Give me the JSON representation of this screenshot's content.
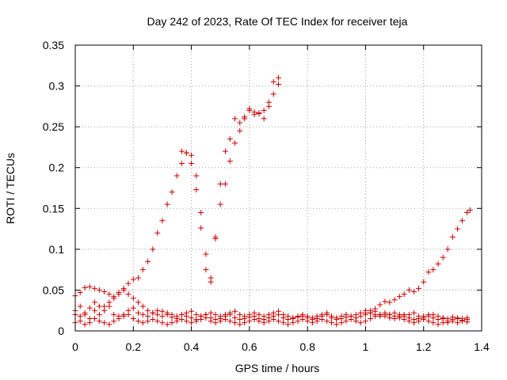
{
  "chart_data": {
    "type": "scatter",
    "title": "Day 242 of 2023, Rate Of TEC Index for receiver teja",
    "xlabel": "GPS time / hours",
    "ylabel": "ROTI / TECUs",
    "xlim": [
      0,
      1.4
    ],
    "ylim": [
      0,
      0.35
    ],
    "x_ticks": [
      0,
      0.2,
      0.4,
      0.6,
      0.8,
      1,
      1.2,
      1.4
    ],
    "x_tick_labels": [
      "0",
      "0.2",
      "0.4",
      "0.6",
      "0.8",
      "1",
      "1.2",
      "1.4"
    ],
    "y_ticks": [
      0,
      0.05,
      0.1,
      0.15,
      0.2,
      0.25,
      0.3,
      0.35
    ],
    "y_tick_labels": [
      "0",
      "0.05",
      "0.1",
      "0.15",
      "0.2",
      "0.25",
      "0.3",
      "0.35"
    ],
    "grid": true,
    "marker": "+",
    "color": "#cc0000",
    "series": [
      {
        "x": [
          0.0,
          0.017,
          0.033,
          0.05,
          0.067,
          0.083,
          0.1,
          0.117,
          0.133,
          0.15,
          0.167,
          0.183,
          0.2,
          0.217,
          0.233,
          0.25,
          0.267,
          0.283,
          0.3,
          0.317,
          0.333,
          0.35,
          0.367,
          0.383,
          0.4,
          0.417,
          0.433,
          0.45,
          0.467,
          0.483,
          0.5,
          0.517,
          0.533,
          0.55,
          0.567,
          0.583,
          0.6,
          0.617,
          0.633,
          0.65,
          0.667,
          0.683,
          0.7,
          0.717,
          0.733,
          0.75,
          0.767,
          0.783,
          0.8,
          0.817,
          0.833,
          0.85,
          0.867,
          0.883,
          0.9,
          0.917,
          0.933,
          0.95,
          0.967,
          0.983,
          1.0,
          1.017,
          1.033,
          1.05,
          1.067,
          1.083,
          1.1,
          1.117,
          1.133,
          1.15,
          1.167,
          1.183,
          1.2,
          1.217,
          1.233,
          1.25,
          1.267,
          1.283,
          1.3,
          1.317,
          1.333,
          1.35
        ],
        "y": [
          0.02,
          0.018,
          0.022,
          0.015,
          0.025,
          0.02,
          0.03,
          0.035,
          0.04,
          0.045,
          0.05,
          0.045,
          0.04,
          0.035,
          0.03,
          0.025,
          0.022,
          0.02,
          0.018,
          0.02,
          0.017,
          0.015,
          0.02,
          0.018,
          0.016,
          0.014,
          0.018,
          0.02,
          0.016,
          0.014,
          0.015,
          0.018,
          0.02,
          0.016,
          0.014,
          0.015,
          0.017,
          0.018,
          0.015,
          0.014,
          0.016,
          0.018,
          0.02,
          0.016,
          0.014,
          0.015,
          0.017,
          0.018,
          0.016,
          0.014,
          0.015,
          0.018,
          0.02,
          0.016,
          0.014,
          0.015,
          0.017,
          0.018,
          0.02,
          0.022,
          0.025,
          0.022,
          0.02,
          0.018,
          0.02,
          0.016,
          0.015,
          0.018,
          0.02,
          0.016,
          0.014,
          0.015,
          0.018,
          0.02,
          0.016,
          0.014,
          0.015,
          0.012,
          0.014,
          0.015,
          0.013,
          0.014
        ]
      },
      {
        "x": [
          0.0,
          0.017,
          0.033,
          0.05,
          0.067,
          0.083,
          0.1,
          0.117,
          0.133,
          0.15,
          0.167,
          0.183,
          0.2,
          0.217,
          0.233,
          0.25,
          0.267,
          0.283,
          0.3,
          0.317,
          0.333,
          0.35,
          0.367,
          0.383,
          0.4,
          0.417,
          0.433,
          0.45,
          0.467,
          0.483,
          0.5,
          0.517,
          0.533,
          0.55,
          0.567,
          0.583,
          0.6,
          0.617,
          0.633,
          0.65,
          0.667,
          0.683,
          0.7,
          0.717,
          0.733,
          0.75,
          0.767,
          0.783,
          0.8,
          0.817,
          0.833,
          0.85,
          0.867,
          0.883,
          0.9,
          0.917,
          0.933,
          0.95,
          0.967,
          0.983,
          1.0,
          1.017,
          1.033,
          1.05,
          1.067,
          1.083,
          1.1,
          1.117,
          1.133,
          1.15,
          1.167,
          1.183,
          1.2,
          1.217,
          1.233,
          1.25,
          1.267,
          1.283,
          1.3,
          1.317,
          1.333,
          1.35
        ],
        "y": [
          0.01,
          0.012,
          0.008,
          0.01,
          0.015,
          0.012,
          0.01,
          0.008,
          0.012,
          0.015,
          0.018,
          0.02,
          0.015,
          0.012,
          0.01,
          0.012,
          0.014,
          0.012,
          0.01,
          0.008,
          0.01,
          0.012,
          0.014,
          0.012,
          0.01,
          0.012,
          0.014,
          0.016,
          0.012,
          0.01,
          0.012,
          0.014,
          0.012,
          0.01,
          0.008,
          0.01,
          0.012,
          0.014,
          0.012,
          0.01,
          0.012,
          0.014,
          0.012,
          0.01,
          0.008,
          0.01,
          0.012,
          0.014,
          0.012,
          0.01,
          0.012,
          0.014,
          0.012,
          0.01,
          0.008,
          0.01,
          0.012,
          0.014,
          0.012,
          0.01,
          0.012,
          0.015,
          0.018,
          0.02,
          0.022,
          0.02,
          0.018,
          0.016,
          0.014,
          0.012,
          0.01,
          0.012,
          0.014,
          0.012,
          0.01,
          0.008,
          0.01,
          0.01,
          0.012,
          0.01,
          0.012,
          0.011
        ]
      },
      {
        "x": [
          0.0,
          0.017,
          0.033,
          0.05,
          0.067,
          0.083,
          0.1,
          0.117,
          0.133,
          0.15,
          0.167,
          0.183,
          0.2,
          0.217,
          0.233,
          0.25,
          0.267,
          0.283,
          0.3,
          0.317,
          0.333,
          0.35,
          0.367,
          0.383,
          0.4,
          0.417,
          0.433,
          0.45,
          0.467,
          0.483,
          0.5,
          0.517,
          0.533,
          0.55,
          0.567,
          0.583,
          0.6,
          0.617,
          0.633,
          0.65,
          0.667,
          0.683,
          0.7,
          0.717,
          0.733,
          0.75,
          0.767,
          0.783,
          0.8,
          0.817,
          0.833,
          0.85,
          0.867,
          0.883,
          0.9,
          0.917,
          0.933,
          0.95,
          0.967,
          0.983,
          1.0,
          1.017,
          1.033,
          1.05,
          1.067,
          1.083,
          1.1,
          1.117,
          1.133,
          1.15,
          1.167,
          1.183,
          1.2,
          1.217,
          1.233,
          1.25,
          1.267,
          1.283,
          1.3,
          1.317,
          1.333,
          1.35
        ],
        "y": [
          0.025,
          0.03,
          0.02,
          0.028,
          0.035,
          0.03,
          0.025,
          0.03,
          0.02,
          0.018,
          0.02,
          0.025,
          0.028,
          0.022,
          0.02,
          0.018,
          0.022,
          0.025,
          0.024,
          0.022,
          0.02,
          0.018,
          0.02,
          0.022,
          0.024,
          0.02,
          0.018,
          0.02,
          0.022,
          0.02,
          0.018,
          0.02,
          0.022,
          0.024,
          0.02,
          0.018,
          0.02,
          0.022,
          0.02,
          0.018,
          0.02,
          0.022,
          0.024,
          0.02,
          0.018,
          0.016,
          0.018,
          0.02,
          0.018,
          0.016,
          0.018,
          0.02,
          0.022,
          0.018,
          0.016,
          0.018,
          0.02,
          0.018,
          0.016,
          0.018,
          0.02,
          0.022,
          0.024,
          0.02,
          0.018,
          0.02,
          0.022,
          0.02,
          0.018,
          0.02,
          0.022,
          0.018,
          0.016,
          0.018,
          0.02,
          0.018,
          0.016,
          0.015,
          0.017,
          0.016,
          0.015,
          0.016
        ]
      },
      {
        "x": [
          0.0,
          0.017,
          0.033,
          0.05,
          0.067,
          0.083,
          0.1,
          0.117,
          0.133,
          0.15,
          0.167,
          0.183,
          0.2,
          0.217,
          0.233,
          0.25,
          0.267,
          0.283,
          0.3,
          0.317,
          0.333,
          0.35,
          0.367,
          0.383,
          0.4,
          0.417,
          0.433,
          0.45,
          0.467,
          0.483,
          0.5,
          0.517,
          0.533,
          0.55,
          0.567,
          0.583,
          0.6,
          0.617,
          0.633,
          0.65,
          0.667,
          0.683,
          0.7
        ],
        "y": [
          0.043,
          0.047,
          0.053,
          0.054,
          0.052,
          0.05,
          0.048,
          0.045,
          0.042,
          0.047,
          0.052,
          0.058,
          0.063,
          0.065,
          0.075,
          0.085,
          0.1,
          0.12,
          0.135,
          0.155,
          0.17,
          0.19,
          0.205,
          0.218,
          0.215,
          0.19,
          0.145,
          0.094,
          0.065,
          0.115,
          0.155,
          0.18,
          0.208,
          0.23,
          0.245,
          0.26,
          0.27,
          0.265,
          0.266,
          0.27,
          0.275,
          0.29,
          0.302
        ]
      },
      {
        "x": [
          0.367,
          0.383,
          0.4,
          0.417,
          0.433,
          0.45,
          0.467,
          0.483,
          0.5,
          0.517,
          0.533,
          0.55,
          0.567,
          0.583,
          0.6,
          0.617,
          0.633,
          0.65,
          0.667,
          0.683,
          0.7
        ],
        "y": [
          0.22,
          0.218,
          0.205,
          0.173,
          0.126,
          0.075,
          0.06,
          0.113,
          0.18,
          0.22,
          0.235,
          0.26,
          0.255,
          0.262,
          0.272,
          0.268,
          0.267,
          0.26,
          0.28,
          0.305,
          0.31
        ]
      },
      {
        "x": [
          1.0,
          1.017,
          1.033,
          1.05,
          1.067,
          1.083,
          1.1,
          1.117,
          1.133,
          1.15,
          1.167,
          1.183,
          1.2,
          1.217,
          1.233,
          1.25,
          1.267,
          1.283,
          1.3,
          1.317,
          1.333,
          1.35,
          1.36
        ],
        "y": [
          0.022,
          0.025,
          0.027,
          0.032,
          0.036,
          0.035,
          0.038,
          0.042,
          0.045,
          0.05,
          0.048,
          0.052,
          0.06,
          0.072,
          0.075,
          0.082,
          0.09,
          0.1,
          0.115,
          0.125,
          0.135,
          0.145,
          0.148
        ]
      }
    ]
  }
}
